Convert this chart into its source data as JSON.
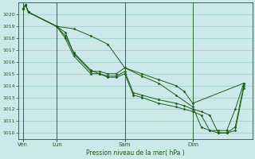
{
  "xlabel": "Pression niveau de la mer( hPa )",
  "bg_color": "#cce8e8",
  "grid_color": "#99cccc",
  "line_color": "#1a5e1a",
  "marker_color": "#1a5e1a",
  "ylim": [
    1009.5,
    1021.0
  ],
  "yticks": [
    1010,
    1011,
    1012,
    1013,
    1014,
    1015,
    1016,
    1017,
    1018,
    1019,
    1020
  ],
  "xlim": [
    -3,
    162
  ],
  "day_labels": [
    "Ven",
    "Lun",
    "Sam",
    "Dim"
  ],
  "day_positions": [
    0,
    24,
    72,
    120
  ],
  "series": [
    [
      0,
      1020.5,
      2,
      1020.8,
      4,
      1020.2,
      24,
      1019.0,
      36,
      1018.8,
      48,
      1018.2,
      60,
      1017.5,
      72,
      1015.5,
      84,
      1015.0,
      96,
      1014.5,
      108,
      1014.0,
      114,
      1013.5,
      120,
      1012.5,
      156,
      1014.2
    ],
    [
      0,
      1020.5,
      2,
      1020.8,
      4,
      1020.2,
      24,
      1019.0,
      30,
      1018.5,
      36,
      1016.7,
      48,
      1015.2,
      54,
      1015.2,
      60,
      1015.0,
      66,
      1015.0,
      72,
      1015.5,
      84,
      1014.8,
      96,
      1014.2,
      108,
      1013.2,
      120,
      1012.2,
      126,
      1010.5,
      132,
      1010.2,
      138,
      1010.2,
      144,
      1010.2,
      150,
      1012.0,
      156,
      1014.2
    ],
    [
      0,
      1020.5,
      2,
      1020.8,
      4,
      1020.2,
      24,
      1019.0,
      30,
      1018.2,
      36,
      1016.8,
      48,
      1015.3,
      54,
      1015.0,
      60,
      1014.8,
      66,
      1014.8,
      72,
      1015.2,
      78,
      1013.4,
      84,
      1013.2,
      96,
      1012.8,
      108,
      1012.5,
      114,
      1012.3,
      120,
      1012.0,
      126,
      1011.8,
      132,
      1011.5,
      138,
      1010.0,
      144,
      1010.0,
      150,
      1010.5,
      156,
      1014.0
    ],
    [
      0,
      1020.5,
      2,
      1020.8,
      4,
      1020.2,
      24,
      1019.0,
      30,
      1018.0,
      36,
      1016.5,
      48,
      1015.0,
      54,
      1015.0,
      60,
      1014.7,
      66,
      1014.7,
      72,
      1015.0,
      78,
      1013.2,
      84,
      1013.0,
      96,
      1012.5,
      108,
      1012.2,
      114,
      1012.0,
      120,
      1011.8,
      126,
      1011.5,
      132,
      1010.2,
      138,
      1010.0,
      144,
      1010.0,
      150,
      1010.2,
      156,
      1013.8
    ]
  ]
}
